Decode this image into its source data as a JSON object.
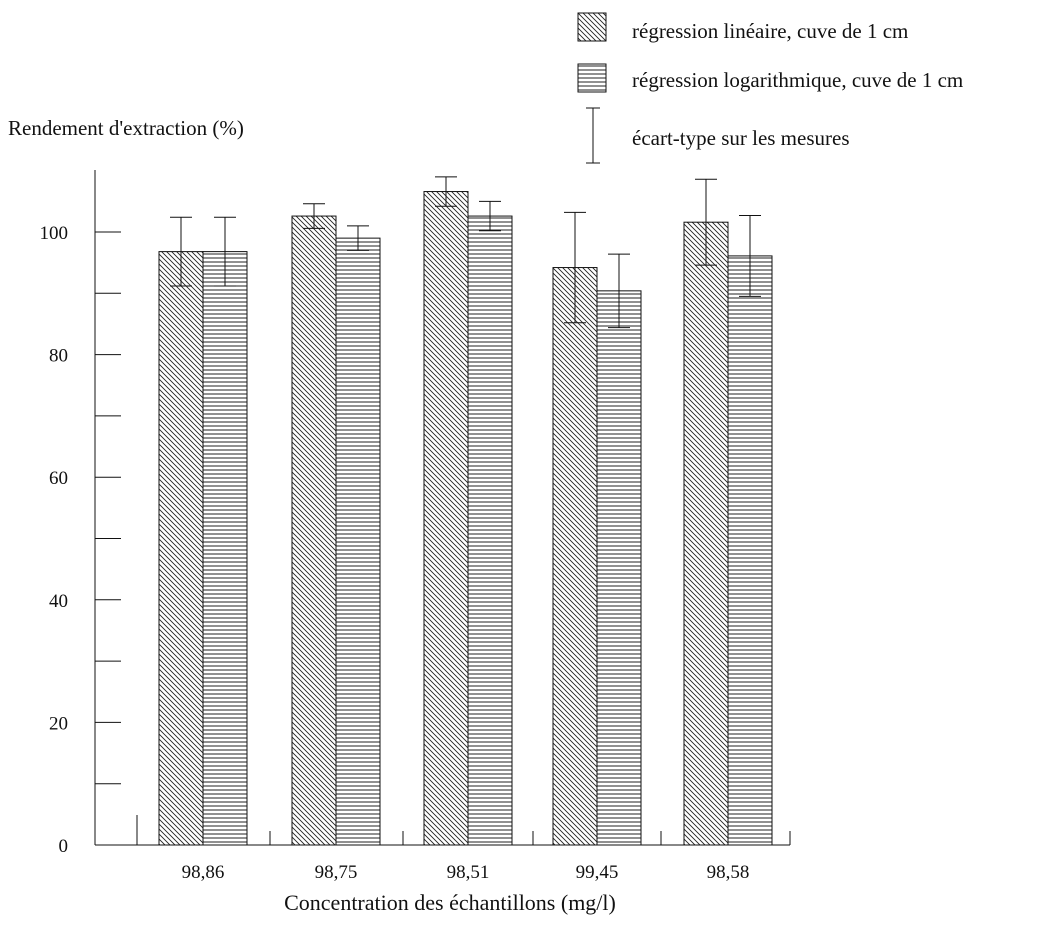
{
  "chart_data": {
    "type": "bar",
    "ylabel": "Rendement d'extraction (%)",
    "xlabel": "Concentration des échantillons (mg/l)",
    "categories": [
      "98,86",
      "98,75",
      "98,51",
      "99,45",
      "98,58"
    ],
    "ylim": [
      0,
      110
    ],
    "yticks": [
      0,
      20,
      40,
      60,
      80,
      100
    ],
    "grid": false,
    "legend_position": "top-right",
    "series": [
      {
        "name": "régression linéaire, cuve de 1 cm",
        "pattern": "diagonal-hatch",
        "values": [
          96.8,
          102.6,
          106.6,
          94.2,
          101.6
        ],
        "errors": [
          5.6,
          2.0,
          2.4,
          9.0,
          7.0
        ]
      },
      {
        "name": "régression logarithmique, cuve de 1 cm",
        "pattern": "horizontal-hatch",
        "values": [
          96.8,
          99.0,
          102.6,
          90.4,
          96.1
        ],
        "errors": [
          5.6,
          2.0,
          2.4,
          6.0,
          6.6
        ]
      }
    ],
    "error_legend": "écart-type sur les mesures"
  }
}
